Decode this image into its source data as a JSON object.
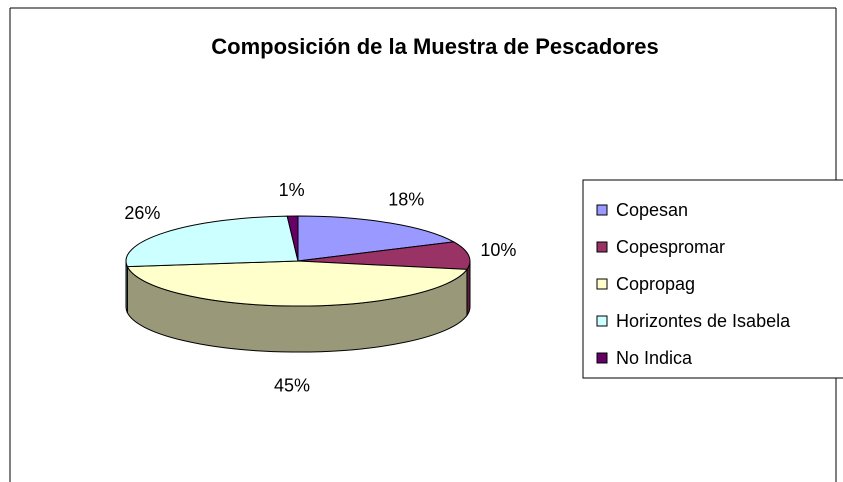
{
  "chart_data": {
    "type": "pie3d",
    "title": "Composición de la Muestra de Pescadores",
    "categories": [
      "Copesan",
      "Copespromar",
      "Copropag",
      "Horizontes de Isabela",
      "No Indica"
    ],
    "values": [
      18,
      10,
      45,
      26,
      1
    ],
    "value_labels": [
      "18%",
      "10%",
      "45%",
      "26%",
      "1%"
    ],
    "colors": [
      "#9999ff",
      "#993366",
      "#ffffcc",
      "#ccffff",
      "#660066"
    ],
    "legend": "right"
  }
}
